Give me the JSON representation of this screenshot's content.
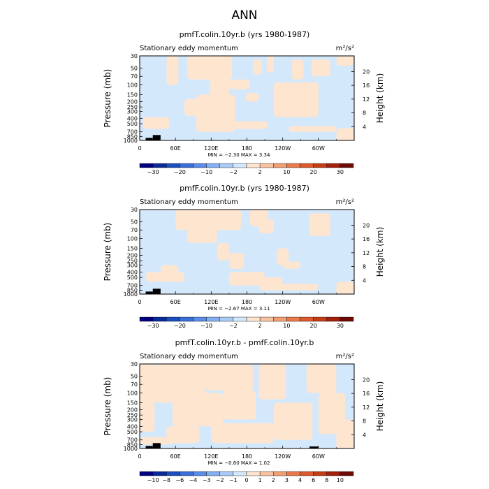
{
  "page_title": "ANN",
  "colors": {
    "negative_fill": "#d4e8fc",
    "positive_fill": "#fde5d0",
    "axis": "#000000",
    "title_gray": "#8a8a8a"
  },
  "chart_data": [
    {
      "type": "heatmap",
      "title": "pmfT.colin.10yr.b (yrs 1980-1987)",
      "left_label": "Stationary eddy momentum",
      "units_label": "m²/s²",
      "ylabel": "Pressure (mb)",
      "ylabel_right": "Height (km)",
      "x_ticks": [
        "0",
        "60E",
        "120E",
        "180",
        "120W",
        "60W"
      ],
      "x_values": [
        0,
        60,
        120,
        180,
        240,
        300
      ],
      "xlim": [
        0,
        360
      ],
      "y_ticks": [
        "30",
        "50",
        "70",
        "100",
        "150",
        "200",
        "250",
        "300",
        "400",
        "500",
        "700",
        "850",
        "1000"
      ],
      "y_values": [
        30,
        50,
        70,
        100,
        150,
        200,
        250,
        300,
        400,
        500,
        700,
        850,
        1000
      ],
      "ylim": [
        1000,
        30
      ],
      "right_ticks": [
        "4",
        "8",
        "12",
        "16",
        "20"
      ],
      "right_values": [
        4,
        8,
        12,
        16,
        20
      ],
      "stats_text": "MIN = −2.30   MAX = 3.34",
      "min": -2.3,
      "max": 3.34,
      "colorbar_labels": [
        "−30",
        "−20",
        "−10",
        "−2",
        "2",
        "10",
        "20",
        "30"
      ],
      "colorbar_colors": [
        "#000080",
        "#0a2a9a",
        "#1a4fbf",
        "#3a6fd8",
        "#5b8de8",
        "#84aff0",
        "#aacbf6",
        "#d4e8fc",
        "#fde5d0",
        "#f8c3a0",
        "#f29e73",
        "#e97a4c",
        "#dd5a2c",
        "#c53c16",
        "#a4200a",
        "#6e0a03"
      ],
      "positive_regions": [
        {
          "lon": [
            45,
            65
          ],
          "p": [
            30,
            100
          ]
        },
        {
          "lon": [
            80,
            155
          ],
          "p": [
            30,
            80
          ]
        },
        {
          "lon": [
            118,
            150
          ],
          "p": [
            70,
            160
          ]
        },
        {
          "lon": [
            150,
            185
          ],
          "p": [
            80,
            120
          ]
        },
        {
          "lon": [
            190,
            205
          ],
          "p": [
            35,
            65
          ]
        },
        {
          "lon": [
            213,
            225
          ],
          "p": [
            30,
            60
          ]
        },
        {
          "lon": [
            255,
            275
          ],
          "p": [
            35,
            80
          ]
        },
        {
          "lon": [
            288,
            320
          ],
          "p": [
            35,
            70
          ]
        },
        {
          "lon": [
            178,
            200
          ],
          "p": [
            140,
            200
          ]
        },
        {
          "lon": [
            225,
            300
          ],
          "p": [
            90,
            380
          ]
        },
        {
          "lon": [
            330,
            360
          ],
          "p": [
            30,
            45
          ]
        },
        {
          "lon": [
            75,
            100
          ],
          "p": [
            180,
            360
          ]
        },
        {
          "lon": [
            5,
            50
          ],
          "p": [
            380,
            620
          ]
        },
        {
          "lon": [
            95,
            160
          ],
          "p": [
            150,
            700
          ]
        },
        {
          "lon": [
            130,
            215
          ],
          "p": [
            450,
            620
          ]
        },
        {
          "lon": [
            250,
            330
          ],
          "p": [
            550,
            700
          ]
        },
        {
          "lon": [
            330,
            360
          ],
          "p": [
            600,
            1000
          ]
        }
      ],
      "topography": [
        {
          "lon": [
            10,
            22
          ],
          "p": [
            900,
            1000
          ]
        },
        {
          "lon": [
            22,
            35
          ],
          "p": [
            800,
            1000
          ]
        }
      ]
    },
    {
      "type": "heatmap",
      "title": "pmfF.colin.10yr.b (yrs 1980-1987)",
      "left_label": "Stationary eddy momentum",
      "units_label": "m²/s²",
      "ylabel": "Pressure (mb)",
      "ylabel_right": "Height (km)",
      "x_ticks": [
        "0",
        "60E",
        "120E",
        "180",
        "120W",
        "60W"
      ],
      "x_values": [
        0,
        60,
        120,
        180,
        240,
        300
      ],
      "xlim": [
        0,
        360
      ],
      "y_ticks": [
        "30",
        "50",
        "70",
        "100",
        "150",
        "200",
        "250",
        "300",
        "400",
        "500",
        "700",
        "850",
        "1000"
      ],
      "y_values": [
        30,
        50,
        70,
        100,
        150,
        200,
        250,
        300,
        400,
        500,
        700,
        850,
        1000
      ],
      "ylim": [
        1000,
        30
      ],
      "right_ticks": [
        "4",
        "8",
        "12",
        "16",
        "20"
      ],
      "right_values": [
        4,
        8,
        12,
        16,
        20
      ],
      "stats_text": "MIN = −2.67   MAX = 3.11",
      "min": -2.67,
      "max": 3.11,
      "colorbar_labels": [
        "−30",
        "−20",
        "−10",
        "−2",
        "2",
        "10",
        "20",
        "30"
      ],
      "colorbar_colors": [
        "#000080",
        "#0a2a9a",
        "#1a4fbf",
        "#3a6fd8",
        "#5b8de8",
        "#84aff0",
        "#aacbf6",
        "#d4e8fc",
        "#fde5d0",
        "#f8c3a0",
        "#f29e73",
        "#e97a4c",
        "#dd5a2c",
        "#c53c16",
        "#a4200a",
        "#6e0a03"
      ],
      "positive_regions": [
        {
          "lon": [
            60,
            170
          ],
          "p": [
            30,
            70
          ]
        },
        {
          "lon": [
            80,
            130
          ],
          "p": [
            60,
            120
          ]
        },
        {
          "lon": [
            130,
            150
          ],
          "p": [
            120,
            250
          ]
        },
        {
          "lon": [
            150,
            175
          ],
          "p": [
            180,
            350
          ]
        },
        {
          "lon": [
            185,
            215
          ],
          "p": [
            30,
            60
          ]
        },
        {
          "lon": [
            200,
            225
          ],
          "p": [
            45,
            80
          ]
        },
        {
          "lon": [
            285,
            320
          ],
          "p": [
            35,
            90
          ]
        },
        {
          "lon": [
            230,
            250
          ],
          "p": [
            150,
            300
          ]
        },
        {
          "lon": [
            10,
            75
          ],
          "p": [
            400,
            600
          ]
        },
        {
          "lon": [
            35,
            65
          ],
          "p": [
            300,
            420
          ]
        },
        {
          "lon": [
            150,
            210
          ],
          "p": [
            400,
            700
          ]
        },
        {
          "lon": [
            180,
            240
          ],
          "p": [
            500,
            700
          ]
        },
        {
          "lon": [
            200,
            300
          ],
          "p": [
            650,
            850
          ]
        },
        {
          "lon": [
            240,
            270
          ],
          "p": [
            260,
            350
          ]
        },
        {
          "lon": [
            330,
            360
          ],
          "p": [
            600,
            1000
          ]
        }
      ],
      "topography": [
        {
          "lon": [
            10,
            22
          ],
          "p": [
            900,
            1000
          ]
        },
        {
          "lon": [
            22,
            35
          ],
          "p": [
            800,
            1000
          ]
        }
      ]
    },
    {
      "type": "heatmap",
      "title": "pmfT.colin.10yr.b - pmfF.colin.10yr.b",
      "left_label": "Stationary eddy momentum",
      "units_label": "m²/s²",
      "ylabel": "Pressure (mb)",
      "ylabel_right": "Height (km)",
      "x_ticks": [
        "0",
        "60E",
        "120E",
        "180",
        "120W",
        "60W"
      ],
      "x_values": [
        0,
        60,
        120,
        180,
        240,
        300
      ],
      "xlim": [
        0,
        360
      ],
      "y_ticks": [
        "30",
        "50",
        "70",
        "100",
        "150",
        "200",
        "250",
        "300",
        "400",
        "500",
        "700",
        "850",
        "1000"
      ],
      "y_values": [
        30,
        50,
        70,
        100,
        150,
        200,
        250,
        300,
        400,
        500,
        700,
        850,
        1000
      ],
      "ylim": [
        1000,
        30
      ],
      "right_ticks": [
        "4",
        "8",
        "12",
        "16",
        "20"
      ],
      "right_values": [
        4,
        8,
        12,
        16,
        20
      ],
      "stats_text": "MIN = −0.60   MAX = 1.02",
      "min": -0.6,
      "max": 1.02,
      "colorbar_labels": [
        "−10",
        "−8",
        "−6",
        "−4",
        "−3",
        "−2",
        "−1",
        "0",
        "1",
        "2",
        "3",
        "4",
        "6",
        "8",
        "10"
      ],
      "colorbar_colors": [
        "#000080",
        "#0a2a9a",
        "#1a4fbf",
        "#3a6fd8",
        "#5b8de8",
        "#84aff0",
        "#aacbf6",
        "#d4e8fc",
        "#fde5d0",
        "#f8c3a0",
        "#f29e73",
        "#e97a4c",
        "#dd5a2c",
        "#c53c16",
        "#a4200a",
        "#6e0a03"
      ],
      "positive_regions": [
        {
          "lon": [
            0,
            25
          ],
          "p": [
            30,
            500
          ]
        },
        {
          "lon": [
            25,
            110
          ],
          "p": [
            30,
            150
          ]
        },
        {
          "lon": [
            55,
            140
          ],
          "p": [
            100,
            400
          ]
        },
        {
          "lon": [
            110,
            190
          ],
          "p": [
            30,
            90
          ]
        },
        {
          "lon": [
            140,
            195
          ],
          "p": [
            90,
            300
          ]
        },
        {
          "lon": [
            200,
            245
          ],
          "p": [
            30,
            130
          ]
        },
        {
          "lon": [
            225,
            290
          ],
          "p": [
            150,
            700
          ]
        },
        {
          "lon": [
            280,
            330
          ],
          "p": [
            30,
            100
          ]
        },
        {
          "lon": [
            300,
            345
          ],
          "p": [
            100,
            550
          ]
        },
        {
          "lon": [
            45,
            100
          ],
          "p": [
            400,
            800
          ]
        },
        {
          "lon": [
            120,
            225
          ],
          "p": [
            350,
            800
          ]
        },
        {
          "lon": [
            330,
            360
          ],
          "p": [
            300,
            1000
          ]
        },
        {
          "lon": [
            0,
            55
          ],
          "p": [
            620,
            850
          ]
        }
      ],
      "topography": [
        {
          "lon": [
            10,
            22
          ],
          "p": [
            900,
            1000
          ]
        },
        {
          "lon": [
            22,
            35
          ],
          "p": [
            800,
            1000
          ]
        },
        {
          "lon": [
            285,
            300
          ],
          "p": [
            920,
            1000
          ]
        }
      ]
    }
  ]
}
